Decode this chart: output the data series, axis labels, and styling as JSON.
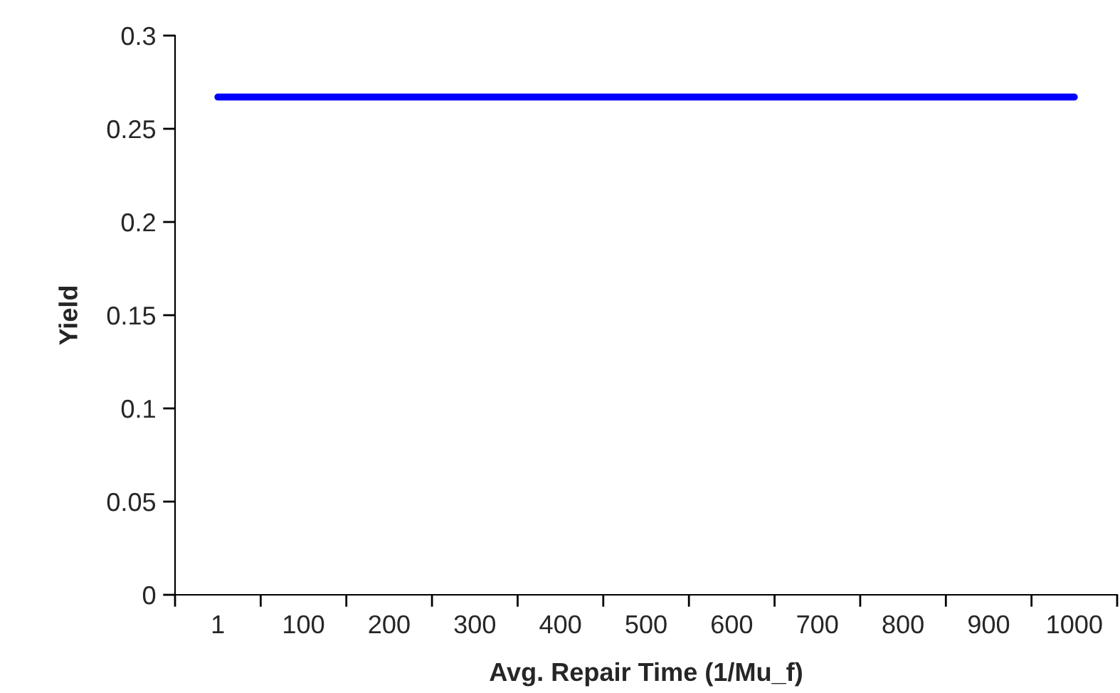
{
  "chart_data": {
    "type": "line",
    "xlabel": "Avg. Repair Time (1/Mu_f)",
    "ylabel": "Yield",
    "categories": [
      "1",
      "100",
      "200",
      "300",
      "400",
      "500",
      "600",
      "700",
      "800",
      "900",
      "1000"
    ],
    "series": [
      {
        "color": "#0000ff",
        "values": [
          0.267,
          0.267,
          0.267,
          0.267,
          0.267,
          0.267,
          0.267,
          0.267,
          0.267,
          0.267,
          0.267
        ]
      }
    ],
    "ylim": [
      0,
      0.3
    ],
    "yticks": [
      0,
      0.05,
      0.1,
      0.15,
      0.2,
      0.25,
      0.3
    ],
    "grid": false,
    "marker": "none",
    "line_style": "solid"
  }
}
